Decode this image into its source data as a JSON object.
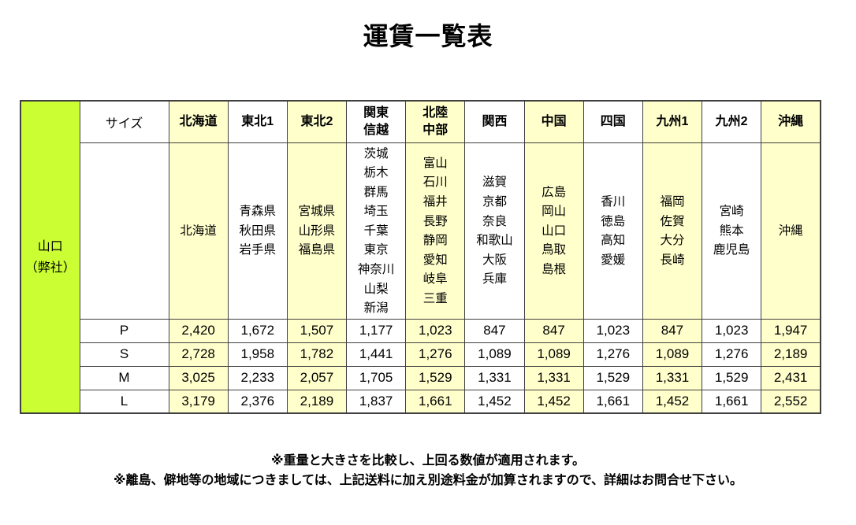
{
  "page": {
    "title": "運賃一覧表",
    "notes": [
      "※重量と大きさを比較し、上回る数値が適用されます。",
      "※離島、僻地等の地域につきましては、上記送料に加え別途料金が加算されますので、詳細はお問合せ下さい。"
    ]
  },
  "colors": {
    "origin_bg": "#ccff33",
    "column_highlight_bg": "#ffffcc",
    "border": "#404040"
  },
  "table": {
    "origin_label": "山口\n（弊社）",
    "size_header": "サイズ",
    "columns": [
      {
        "label": "北海道",
        "prefectures": [
          "北海道"
        ],
        "highlight": true
      },
      {
        "label": "東北1",
        "prefectures": [
          "青森県",
          "秋田県",
          "岩手県"
        ],
        "highlight": false
      },
      {
        "label": "東北2",
        "prefectures": [
          "宮城県",
          "山形県",
          "福島県"
        ],
        "highlight": true
      },
      {
        "label": "関東\n信越",
        "prefectures": [
          "茨城",
          "栃木",
          "群馬",
          "埼玉",
          "千葉",
          "東京",
          "神奈川",
          "山梨",
          "新潟"
        ],
        "highlight": false
      },
      {
        "label": "北陸\n中部",
        "prefectures": [
          "富山",
          "石川",
          "福井",
          "長野",
          "静岡",
          "愛知",
          "岐阜",
          "三重"
        ],
        "highlight": true
      },
      {
        "label": "関西",
        "prefectures": [
          "滋賀",
          "京都",
          "奈良",
          "和歌山",
          "大阪",
          "兵庫"
        ],
        "highlight": false
      },
      {
        "label": "中国",
        "prefectures": [
          "広島",
          "岡山",
          "山口",
          "鳥取",
          "島根"
        ],
        "highlight": true
      },
      {
        "label": "四国",
        "prefectures": [
          "香川",
          "徳島",
          "高知",
          "愛媛"
        ],
        "highlight": false
      },
      {
        "label": "九州1",
        "prefectures": [
          "福岡",
          "佐賀",
          "大分",
          "長崎"
        ],
        "highlight": true
      },
      {
        "label": "九州2",
        "prefectures": [
          "宮崎",
          "熊本",
          "鹿児島"
        ],
        "highlight": false
      },
      {
        "label": "沖縄",
        "prefectures": [
          "沖縄"
        ],
        "highlight": true
      }
    ],
    "rows": [
      {
        "size": "P",
        "values": [
          "2,420",
          "1,672",
          "1,507",
          "1,177",
          "1,023",
          "847",
          "847",
          "1,023",
          "847",
          "1,023",
          "1,947"
        ]
      },
      {
        "size": "S",
        "values": [
          "2,728",
          "1,958",
          "1,782",
          "1,441",
          "1,276",
          "1,089",
          "1,089",
          "1,276",
          "1,089",
          "1,276",
          "2,189"
        ]
      },
      {
        "size": "M",
        "values": [
          "3,025",
          "2,233",
          "2,057",
          "1,705",
          "1,529",
          "1,331",
          "1,331",
          "1,529",
          "1,331",
          "1,529",
          "2,431"
        ]
      },
      {
        "size": "L",
        "values": [
          "3,179",
          "2,376",
          "2,189",
          "1,837",
          "1,661",
          "1,452",
          "1,452",
          "1,661",
          "1,452",
          "1,661",
          "2,552"
        ]
      }
    ]
  }
}
